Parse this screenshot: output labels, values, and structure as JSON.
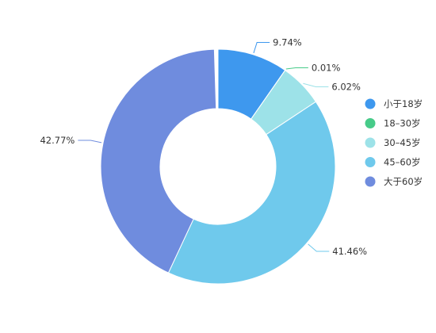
{
  "chart_data": {
    "type": "pie",
    "donut": true,
    "categories": [
      "小于18岁",
      "18–30岁",
      "30–45岁",
      "45–60岁",
      "大于60岁"
    ],
    "values": [
      9.74,
      0.01,
      6.02,
      41.46,
      42.77
    ],
    "data_labels": [
      "9.74%",
      "0.01%",
      "6.02%",
      "41.46%",
      "42.77%"
    ],
    "colors": [
      "#3e98ee",
      "#47cb89",
      "#9de2e8",
      "#6fc9ec",
      "#6f8cde"
    ],
    "legend_position": "right",
    "gap_after_last_percent": 0.5
  }
}
